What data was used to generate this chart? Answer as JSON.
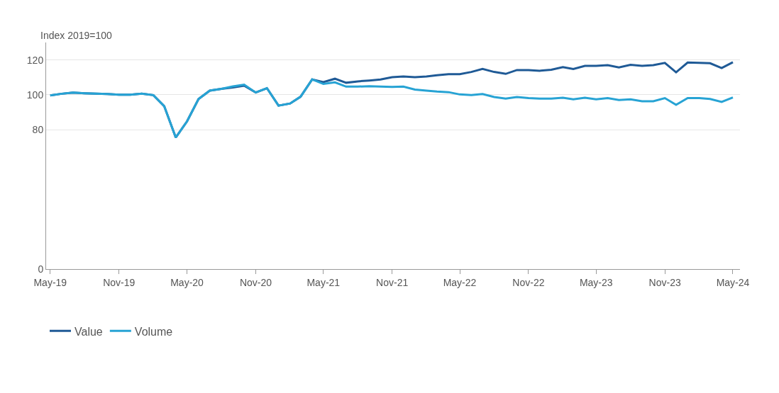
{
  "chart_data": {
    "type": "line",
    "ylabel": "Index 2019=100",
    "x": [
      "2019-05",
      "2019-06",
      "2019-07",
      "2019-08",
      "2019-09",
      "2019-10",
      "2019-11",
      "2019-12",
      "2020-01",
      "2020-02",
      "2020-03",
      "2020-04",
      "2020-05",
      "2020-06",
      "2020-07",
      "2020-08",
      "2020-09",
      "2020-10",
      "2020-11",
      "2020-12",
      "2021-01",
      "2021-02",
      "2021-03",
      "2021-04",
      "2021-05",
      "2021-06",
      "2021-07",
      "2021-08",
      "2021-09",
      "2021-10",
      "2021-11",
      "2021-12",
      "2022-01",
      "2022-02",
      "2022-03",
      "2022-04",
      "2022-05",
      "2022-06",
      "2022-07",
      "2022-08",
      "2022-09",
      "2022-10",
      "2022-11",
      "2022-12",
      "2023-01",
      "2023-02",
      "2023-03",
      "2023-04",
      "2023-05",
      "2023-06",
      "2023-07",
      "2023-08",
      "2023-09",
      "2023-10",
      "2023-11",
      "2023-12",
      "2024-01",
      "2024-02",
      "2024-03",
      "2024-04",
      "2024-05"
    ],
    "series": [
      {
        "name": "Value",
        "color": "#1f5a96",
        "values": [
          99.6,
          100.6,
          101.3,
          100.9,
          100.6,
          100.4,
          100,
          100,
          100.6,
          99.8,
          93.5,
          75.5,
          84.7,
          97.6,
          102.4,
          103.4,
          104.2,
          105.2,
          101.3,
          103.8,
          93.8,
          95,
          98.9,
          108.8,
          107.3,
          109.2,
          106.9,
          107.7,
          108.2,
          108.8,
          110.1,
          110.5,
          110.1,
          110.5,
          111.2,
          111.8,
          111.8,
          113.1,
          114.8,
          113.1,
          112,
          114.2,
          114.2,
          113.8,
          114.4,
          115.9,
          114.8,
          116.6,
          116.6,
          117,
          115.7,
          117.2,
          116.6,
          117,
          118.3,
          112.9,
          118.5,
          118.3,
          118.1,
          115.3,
          118.7
        ]
      },
      {
        "name": "Volume",
        "color": "#27a3d4",
        "values": [
          99.6,
          100.6,
          101.3,
          100.9,
          100.6,
          100.4,
          100,
          100,
          100.6,
          99.8,
          93.5,
          75.5,
          84.7,
          97.6,
          102.4,
          103.4,
          104.8,
          105.8,
          101.3,
          103.8,
          93.8,
          95,
          98.9,
          108.8,
          106.2,
          107.1,
          104.7,
          104.7,
          104.9,
          104.7,
          104.5,
          104.7,
          103,
          102.4,
          101.9,
          101.5,
          100.2,
          99.8,
          100.4,
          98.7,
          97.8,
          98.7,
          98.1,
          97.8,
          97.8,
          98.3,
          97.4,
          98.3,
          97.4,
          98.1,
          97,
          97.4,
          96.3,
          96.3,
          98.1,
          94.2,
          98.1,
          98.1,
          97.6,
          95.9,
          98.5
        ]
      }
    ],
    "xlim": [
      "2019-04-20",
      "2024-05-20"
    ],
    "xticks": [
      {
        "value": "2019-05",
        "label": "May-19"
      },
      {
        "value": "2019-11",
        "label": "Nov-19"
      },
      {
        "value": "2020-05",
        "label": "May-20"
      },
      {
        "value": "2020-11",
        "label": "Nov-20"
      },
      {
        "value": "2021-05",
        "label": "May-21"
      },
      {
        "value": "2021-11",
        "label": "Nov-21"
      },
      {
        "value": "2022-05",
        "label": "May-22"
      },
      {
        "value": "2022-11",
        "label": "Nov-22"
      },
      {
        "value": "2023-05",
        "label": "May-23"
      },
      {
        "value": "2023-11",
        "label": "Nov-23"
      },
      {
        "value": "2024-05",
        "label": "May-24"
      }
    ],
    "ylim": [
      0,
      130
    ],
    "yticks": [
      0,
      80,
      100,
      120
    ],
    "grid": "y",
    "legend": "bottom left",
    "marker": "none",
    "line_style": "solid"
  }
}
